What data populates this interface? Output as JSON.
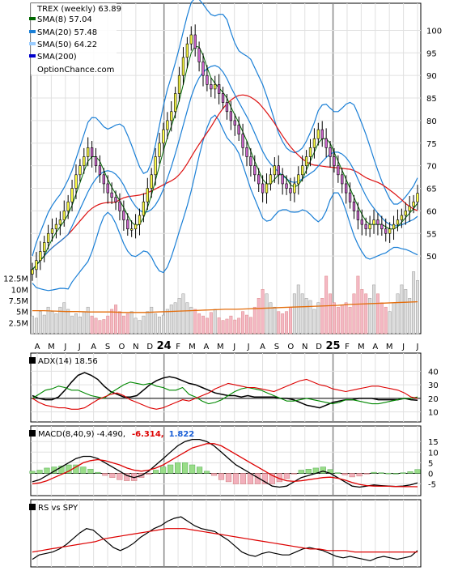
{
  "chart_data": [
    {
      "type": "candlestick",
      "panel": "price",
      "title": "TREX (weekly) 63.89",
      "source_label": "OptionChance.com",
      "ylim": [
        45,
        106
      ],
      "y_ticks": [
        50,
        55,
        60,
        65,
        70,
        75,
        80,
        85,
        90,
        95,
        100
      ],
      "x_month_labels": [
        "A",
        "M",
        "J",
        "J",
        "A",
        "S",
        "O",
        "N",
        "D",
        "24",
        "F",
        "M",
        "A",
        "M",
        "J",
        "J",
        "A",
        "S",
        "O",
        "N",
        "D",
        "25",
        "F",
        "M",
        "A",
        "M",
        "J",
        "J"
      ],
      "colors": {
        "up": "#ffff44",
        "down": "#cc66cc",
        "sma8": "#006600",
        "sma20": "#1a7fd6",
        "sma50": "#99ccff",
        "sma200": "#0000cc",
        "bband": "#1a7fd6",
        "long_ma": "#dd1111"
      },
      "close_series": [
        47,
        49,
        51,
        53,
        55,
        56,
        57,
        58,
        60,
        62,
        65,
        68,
        70,
        72,
        74,
        72,
        70,
        68,
        66,
        64,
        63,
        62,
        60,
        58,
        56,
        56,
        57,
        59,
        62,
        65,
        68,
        72,
        75,
        78,
        80,
        82,
        86,
        90,
        94,
        97,
        99,
        96,
        93,
        90,
        88,
        87,
        88,
        86,
        84,
        82,
        80,
        79,
        77,
        74,
        72,
        70,
        68,
        66,
        64,
        66,
        68,
        70,
        68,
        66,
        65,
        64,
        66,
        68,
        70,
        72,
        74,
        76,
        78,
        76,
        74,
        72,
        70,
        68,
        66,
        64,
        62,
        60,
        58,
        57,
        56,
        57,
        58,
        57,
        56,
        55,
        56,
        57,
        58,
        59,
        60,
        61,
        62,
        63.89
      ],
      "series": [
        {
          "name": "SMA(8) 57.04",
          "values": [
            57.04
          ]
        },
        {
          "name": "SMA(20) 57.48",
          "values": [
            57.48
          ]
        },
        {
          "name": "SMA(50) 64.22",
          "values": [
            64.22
          ]
        },
        {
          "name": "SMA(200)",
          "values": []
        }
      ]
    },
    {
      "type": "bar",
      "panel": "volume",
      "y_tick_labels": [
        "12.5M",
        "10M",
        "7.5M",
        "5M",
        "2.5M"
      ],
      "y_tick_values": [
        12.5,
        10,
        7.5,
        5,
        2.5
      ],
      "ylim": [
        0,
        15
      ],
      "values": [
        4,
        3.5,
        5,
        4.2,
        6,
        5,
        4.5,
        6,
        7,
        5.5,
        4,
        4.5,
        3.8,
        5,
        6,
        4,
        3.5,
        3,
        3.2,
        4,
        5.5,
        6.5,
        5,
        4,
        4.5,
        5,
        3.5,
        3,
        4,
        5,
        6,
        4.5,
        3.8,
        4.2,
        5.5,
        6.5,
        7,
        8,
        9,
        7,
        6,
        5.5,
        4.5,
        4,
        3.5,
        4.8,
        5.5,
        3.6,
        3,
        3.3,
        4,
        3.1,
        3.5,
        5,
        4.2,
        3.7,
        6,
        8,
        10,
        9,
        7,
        6,
        5,
        4.5,
        5,
        6,
        9,
        11,
        9,
        8,
        7.5,
        5.5,
        7,
        8,
        13,
        9,
        7,
        6,
        6.5,
        7,
        6,
        9,
        13,
        10,
        9,
        8,
        11,
        9,
        7,
        6,
        5,
        7,
        9,
        11,
        10,
        8,
        14,
        12
      ],
      "avg_series": {
        "name": "volume average",
        "values": [
          5.2,
          5.2,
          5.1,
          5,
          5,
          4.9,
          4.9,
          4.9,
          4.8,
          4.8,
          4.8,
          4.9,
          5,
          5.1,
          5.2,
          5.3,
          5.4,
          5.5,
          5.5,
          5.6,
          5.7,
          5.8,
          5.9,
          6,
          6.1,
          6.2,
          6.3,
          6.4,
          6.6,
          6.7,
          6.8,
          6.9,
          7,
          7.1,
          7.2
        ]
      }
    },
    {
      "type": "line",
      "panel": "adx",
      "label": "ADX(14) 18.56",
      "y_ticks": [
        40,
        30,
        20,
        10
      ],
      "ylim": [
        5,
        45
      ],
      "series": [
        {
          "name": "ADX",
          "color": "#000000",
          "values": [
            22,
            20,
            19,
            19,
            21,
            26,
            32,
            37,
            39,
            37,
            34,
            29,
            25,
            23,
            21,
            21,
            22,
            26,
            30,
            33,
            35,
            36,
            35,
            33,
            31,
            30,
            28,
            26,
            24,
            23,
            22,
            22,
            21,
            22,
            21,
            21,
            21,
            21,
            20,
            20,
            19,
            17,
            15,
            14,
            13,
            15,
            17,
            18,
            19,
            19,
            20,
            20,
            20,
            19,
            19,
            19,
            19,
            20,
            19,
            18.56
          ]
        },
        {
          "name": "+DI",
          "color": "#008800",
          "values": [
            20,
            23,
            26,
            27,
            29,
            28,
            26,
            26,
            24,
            22,
            21,
            20,
            24,
            27,
            30,
            32,
            31,
            30,
            31,
            29,
            28,
            26,
            26,
            28,
            23,
            21,
            18,
            16,
            17,
            19,
            22,
            25,
            27,
            28,
            27,
            26,
            24,
            22,
            20,
            18,
            18,
            19,
            20,
            19,
            18,
            17,
            16,
            17,
            19,
            19,
            18,
            17,
            16,
            16,
            17,
            18,
            19,
            20,
            20,
            21
          ]
        },
        {
          "name": "-DI",
          "color": "#dd0000",
          "values": [
            20,
            17,
            15,
            14,
            13,
            13,
            12,
            12,
            13,
            16,
            19,
            21,
            23,
            24,
            22,
            19,
            17,
            15,
            13,
            12,
            13,
            15,
            17,
            19,
            18,
            20,
            22,
            24,
            27,
            29,
            31,
            30,
            29,
            28,
            28,
            27,
            26,
            25,
            27,
            29,
            31,
            33,
            34,
            32,
            30,
            29,
            27,
            26,
            25,
            26,
            27,
            28,
            29,
            29,
            28,
            27,
            26,
            24,
            21,
            20
          ]
        }
      ]
    },
    {
      "type": "line",
      "panel": "macd",
      "label": "MACD(8,40,9)",
      "label_values": [
        "-4.490,",
        "-6.314,",
        "1.822"
      ],
      "y_ticks": [
        15,
        10,
        5,
        0,
        -5
      ],
      "ylim": [
        -9,
        17
      ],
      "series": [
        {
          "name": "MACD",
          "color": "#000000",
          "values": [
            -4,
            -3,
            -1,
            1,
            3,
            5,
            7,
            8,
            8,
            7,
            5,
            3,
            1,
            -1,
            -2,
            -1,
            1,
            4,
            7,
            10,
            13,
            15,
            16,
            16,
            15,
            13,
            10,
            7,
            4,
            2,
            0,
            -2,
            -4,
            -6,
            -6.5,
            -6,
            -4,
            -2,
            -1,
            0,
            1,
            0,
            -2,
            -4,
            -6,
            -6.5,
            -6,
            -5.5,
            -5.8,
            -6,
            -6.2,
            -6,
            -5.5,
            -4.49
          ]
        },
        {
          "name": "Signal",
          "color": "#dd0000",
          "values": [
            -5,
            -4.5,
            -3.5,
            -2,
            -0.5,
            1,
            3,
            5,
            6,
            6.5,
            6,
            5,
            4,
            2.5,
            1.5,
            1,
            1.5,
            2.5,
            4,
            6,
            8,
            10,
            12,
            13,
            14,
            14,
            13,
            11,
            9,
            7,
            5,
            3,
            1,
            -1,
            -2.5,
            -3.5,
            -3.8,
            -3.5,
            -3,
            -2.5,
            -2,
            -1.8,
            -2.3,
            -3.2,
            -4.3,
            -5.2,
            -5.8,
            -6,
            -6.1,
            -6.1,
            -6.2,
            -6.3,
            -6.3,
            -6.314
          ]
        }
      ],
      "histogram": [
        1,
        1.5,
        2.5,
        3,
        3.5,
        4,
        4,
        3,
        2,
        0.5,
        -1,
        -2,
        -3,
        -3.5,
        -3.5,
        -2,
        -0.5,
        1.5,
        3,
        4,
        5,
        5,
        4,
        3,
        1,
        -1,
        -3,
        -4,
        -5,
        -5,
        -5,
        -5,
        -5,
        -5,
        -4,
        -2.5,
        -0.2,
        1.5,
        2,
        2.5,
        3,
        1.8,
        0.3,
        -0.8,
        -1.7,
        -1.3,
        -0.2,
        0.5,
        0.3,
        0.1,
        0,
        0.3,
        0.8,
        1.822
      ]
    },
    {
      "type": "line",
      "panel": "rs_vs_spy",
      "label": "RS vs SPY",
      "series": [
        {
          "name": "RS",
          "color": "#000000",
          "values": [
            4,
            7,
            8,
            9,
            11,
            14,
            18,
            22,
            25,
            24,
            20,
            16,
            12,
            10,
            12,
            15,
            19,
            22,
            25,
            27,
            30,
            32,
            33,
            30,
            27,
            25,
            24,
            23,
            20,
            17,
            13,
            9,
            7,
            6,
            8,
            9,
            8,
            7,
            7,
            9,
            11,
            12,
            11,
            10,
            8,
            6,
            5,
            6,
            5,
            4,
            3,
            5,
            6,
            5,
            4,
            5,
            6,
            10
          ]
        },
        {
          "name": "RS average",
          "color": "#dd0000",
          "values": [
            9,
            10,
            11,
            12,
            13,
            14,
            15,
            16,
            18,
            19,
            20,
            21,
            22,
            23,
            24,
            25,
            25,
            25,
            24,
            23,
            22,
            21,
            20,
            19,
            18,
            17,
            16,
            15,
            14,
            13,
            12,
            11,
            11,
            10,
            10,
            10,
            9,
            9,
            9,
            9,
            9,
            9,
            9,
            9
          ]
        }
      ]
    }
  ]
}
